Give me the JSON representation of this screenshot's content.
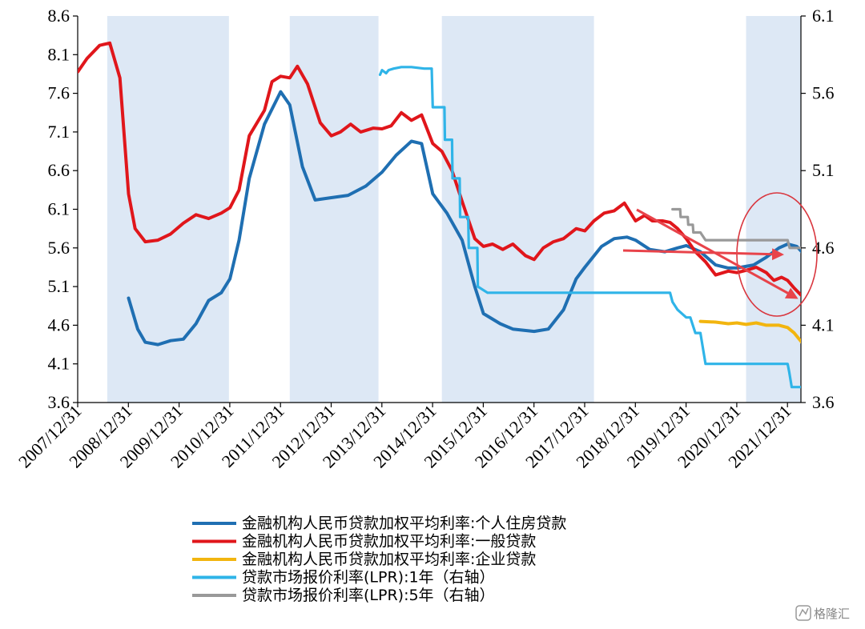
{
  "chart_data": {
    "type": "line",
    "x_start": 2007.9167,
    "x_ticks": [
      "2007/12/31",
      "2008/12/31",
      "2009/12/31",
      "2010/12/31",
      "2011/12/31",
      "2012/12/31",
      "2013/12/31",
      "2014/12/31",
      "2015/12/31",
      "2016/12/31",
      "2017/12/31",
      "2018/12/31",
      "2019/12/31",
      "2020/12/31",
      "2021/12/31"
    ],
    "y_left": {
      "min": 3.6,
      "max": 8.6,
      "ticks": [
        "3.6",
        "4.1",
        "4.6",
        "5.1",
        "5.6",
        "6.1",
        "6.6",
        "7.1",
        "7.6",
        "8.1",
        "8.6"
      ]
    },
    "y_right": {
      "min": 3.6,
      "max": 6.1,
      "ticks": [
        "3.6",
        "4.1",
        "4.6",
        "5.1",
        "5.6",
        "6.1"
      ]
    },
    "shaded_periods": [
      [
        2008.5,
        2010.9
      ],
      [
        2012.1,
        2013.85
      ],
      [
        2015.1,
        2018.1
      ],
      [
        2021.1,
        2022.2
      ]
    ],
    "series": [
      {
        "name": "金融机构人民币贷款加权平均利率:个人住房贷款",
        "color": "#1f6fb2",
        "axis": "left",
        "points": [
          [
            2008.92,
            4.95
          ],
          [
            2009.1,
            4.55
          ],
          [
            2009.25,
            4.38
          ],
          [
            2009.5,
            4.35
          ],
          [
            2009.75,
            4.4
          ],
          [
            2010.0,
            4.42
          ],
          [
            2010.25,
            4.62
          ],
          [
            2010.5,
            4.92
          ],
          [
            2010.75,
            5.02
          ],
          [
            2010.92,
            5.2
          ],
          [
            2011.1,
            5.7
          ],
          [
            2011.3,
            6.5
          ],
          [
            2011.6,
            7.2
          ],
          [
            2011.92,
            7.62
          ],
          [
            2012.1,
            7.45
          ],
          [
            2012.35,
            6.65
          ],
          [
            2012.6,
            6.22
          ],
          [
            2012.92,
            6.25
          ],
          [
            2013.25,
            6.28
          ],
          [
            2013.6,
            6.4
          ],
          [
            2013.92,
            6.58
          ],
          [
            2014.2,
            6.8
          ],
          [
            2014.5,
            6.98
          ],
          [
            2014.7,
            6.95
          ],
          [
            2014.92,
            6.3
          ],
          [
            2015.2,
            6.05
          ],
          [
            2015.5,
            5.7
          ],
          [
            2015.75,
            5.1
          ],
          [
            2015.92,
            4.75
          ],
          [
            2016.25,
            4.62
          ],
          [
            2016.5,
            4.55
          ],
          [
            2016.92,
            4.52
          ],
          [
            2017.2,
            4.55
          ],
          [
            2017.5,
            4.8
          ],
          [
            2017.75,
            5.2
          ],
          [
            2017.92,
            5.35
          ],
          [
            2018.25,
            5.62
          ],
          [
            2018.5,
            5.72
          ],
          [
            2018.75,
            5.74
          ],
          [
            2018.92,
            5.7
          ],
          [
            2019.2,
            5.58
          ],
          [
            2019.5,
            5.55
          ],
          [
            2019.75,
            5.6
          ],
          [
            2019.92,
            5.63
          ],
          [
            2020.2,
            5.55
          ],
          [
            2020.5,
            5.38
          ],
          [
            2020.75,
            5.34
          ],
          [
            2020.92,
            5.34
          ],
          [
            2021.25,
            5.38
          ],
          [
            2021.5,
            5.48
          ],
          [
            2021.75,
            5.6
          ],
          [
            2021.92,
            5.65
          ],
          [
            2022.1,
            5.62
          ],
          [
            2022.2,
            5.55
          ],
          [
            2022.28,
            5.47
          ]
        ]
      },
      {
        "name": "金融机构人民币贷款加权平均利率:一般贷款",
        "color": "#e0161b",
        "axis": "left",
        "points": [
          [
            2007.92,
            7.88
          ],
          [
            2008.1,
            8.05
          ],
          [
            2008.35,
            8.22
          ],
          [
            2008.55,
            8.25
          ],
          [
            2008.75,
            7.8
          ],
          [
            2008.92,
            6.3
          ],
          [
            2009.05,
            5.85
          ],
          [
            2009.25,
            5.68
          ],
          [
            2009.5,
            5.7
          ],
          [
            2009.75,
            5.78
          ],
          [
            2010.0,
            5.92
          ],
          [
            2010.25,
            6.03
          ],
          [
            2010.5,
            5.98
          ],
          [
            2010.75,
            6.05
          ],
          [
            2010.92,
            6.12
          ],
          [
            2011.1,
            6.35
          ],
          [
            2011.3,
            7.05
          ],
          [
            2011.6,
            7.38
          ],
          [
            2011.75,
            7.75
          ],
          [
            2011.92,
            7.82
          ],
          [
            2012.1,
            7.8
          ],
          [
            2012.25,
            7.95
          ],
          [
            2012.45,
            7.72
          ],
          [
            2012.7,
            7.22
          ],
          [
            2012.92,
            7.05
          ],
          [
            2013.1,
            7.1
          ],
          [
            2013.3,
            7.2
          ],
          [
            2013.5,
            7.1
          ],
          [
            2013.75,
            7.15
          ],
          [
            2013.92,
            7.14
          ],
          [
            2014.1,
            7.18
          ],
          [
            2014.3,
            7.35
          ],
          [
            2014.5,
            7.25
          ],
          [
            2014.7,
            7.32
          ],
          [
            2014.92,
            6.95
          ],
          [
            2015.1,
            6.85
          ],
          [
            2015.3,
            6.6
          ],
          [
            2015.5,
            6.2
          ],
          [
            2015.75,
            5.72
          ],
          [
            2015.92,
            5.62
          ],
          [
            2016.1,
            5.65
          ],
          [
            2016.3,
            5.58
          ],
          [
            2016.5,
            5.65
          ],
          [
            2016.75,
            5.5
          ],
          [
            2016.92,
            5.45
          ],
          [
            2017.1,
            5.6
          ],
          [
            2017.3,
            5.68
          ],
          [
            2017.5,
            5.72
          ],
          [
            2017.75,
            5.85
          ],
          [
            2017.92,
            5.82
          ],
          [
            2018.1,
            5.95
          ],
          [
            2018.3,
            6.05
          ],
          [
            2018.5,
            6.08
          ],
          [
            2018.7,
            6.18
          ],
          [
            2018.92,
            5.95
          ],
          [
            2019.1,
            6.02
          ],
          [
            2019.25,
            5.95
          ],
          [
            2019.45,
            5.95
          ],
          [
            2019.6,
            5.93
          ],
          [
            2019.75,
            5.85
          ],
          [
            2019.92,
            5.72
          ],
          [
            2020.1,
            5.55
          ],
          [
            2020.3,
            5.42
          ],
          [
            2020.5,
            5.25
          ],
          [
            2020.75,
            5.3
          ],
          [
            2020.92,
            5.28
          ],
          [
            2021.1,
            5.31
          ],
          [
            2021.3,
            5.35
          ],
          [
            2021.5,
            5.28
          ],
          [
            2021.65,
            5.18
          ],
          [
            2021.8,
            5.22
          ],
          [
            2021.92,
            5.18
          ],
          [
            2022.05,
            5.08
          ],
          [
            2022.2,
            4.98
          ]
        ]
      },
      {
        "name": "金融机构人民币贷款加权平均利率:企业贷款",
        "color": "#f2b50f",
        "axis": "left",
        "points": [
          [
            2020.2,
            4.65
          ],
          [
            2020.5,
            4.64
          ],
          [
            2020.75,
            4.62
          ],
          [
            2020.92,
            4.63
          ],
          [
            2021.1,
            4.61
          ],
          [
            2021.3,
            4.63
          ],
          [
            2021.5,
            4.6
          ],
          [
            2021.75,
            4.6
          ],
          [
            2021.92,
            4.57
          ],
          [
            2022.05,
            4.5
          ],
          [
            2022.2,
            4.38
          ]
        ]
      },
      {
        "name": "贷款市场报价利率(LPR):1年（右轴）",
        "color": "#2fb4e8",
        "axis": "right",
        "step": true,
        "points": [
          [
            2013.88,
            5.72
          ],
          [
            2013.92,
            5.75
          ],
          [
            2014.0,
            5.73
          ],
          [
            2014.05,
            5.75
          ],
          [
            2014.15,
            5.76
          ],
          [
            2014.3,
            5.77
          ],
          [
            2014.5,
            5.77
          ],
          [
            2014.75,
            5.76
          ],
          [
            2014.9,
            5.76
          ],
          [
            2014.92,
            5.51
          ],
          [
            2015.15,
            5.51
          ],
          [
            2015.16,
            5.3
          ],
          [
            2015.3,
            5.3
          ],
          [
            2015.31,
            5.05
          ],
          [
            2015.45,
            5.05
          ],
          [
            2015.46,
            4.8
          ],
          [
            2015.62,
            4.8
          ],
          [
            2015.63,
            4.6
          ],
          [
            2015.8,
            4.6
          ],
          [
            2015.81,
            4.35
          ],
          [
            2016.0,
            4.31
          ],
          [
            2017.0,
            4.31
          ],
          [
            2018.0,
            4.31
          ],
          [
            2019.0,
            4.31
          ],
          [
            2019.6,
            4.31
          ],
          [
            2019.65,
            4.25
          ],
          [
            2019.75,
            4.2
          ],
          [
            2019.92,
            4.15
          ],
          [
            2020.0,
            4.15
          ],
          [
            2020.1,
            4.05
          ],
          [
            2020.2,
            4.05
          ],
          [
            2020.3,
            3.85
          ],
          [
            2020.92,
            3.85
          ],
          [
            2021.0,
            3.85
          ],
          [
            2021.92,
            3.85
          ],
          [
            2021.95,
            3.8
          ],
          [
            2022.0,
            3.7
          ],
          [
            2022.28,
            3.7
          ]
        ]
      },
      {
        "name": "贷款市场报价利率(LPR):5年（右轴）",
        "color": "#999999",
        "axis": "right",
        "step": true,
        "points": [
          [
            2019.65,
            4.85
          ],
          [
            2019.8,
            4.85
          ],
          [
            2019.81,
            4.8
          ],
          [
            2019.95,
            4.8
          ],
          [
            2019.96,
            4.75
          ],
          [
            2020.05,
            4.75
          ],
          [
            2020.06,
            4.7
          ],
          [
            2020.2,
            4.7
          ],
          [
            2020.3,
            4.65
          ],
          [
            2020.92,
            4.65
          ],
          [
            2021.0,
            4.65
          ],
          [
            2021.92,
            4.65
          ],
          [
            2021.96,
            4.6
          ],
          [
            2022.2,
            4.6
          ],
          [
            2022.28,
            4.5
          ]
        ]
      }
    ],
    "legend_position": "bottom"
  },
  "watermark": {
    "text": "格隆汇"
  }
}
